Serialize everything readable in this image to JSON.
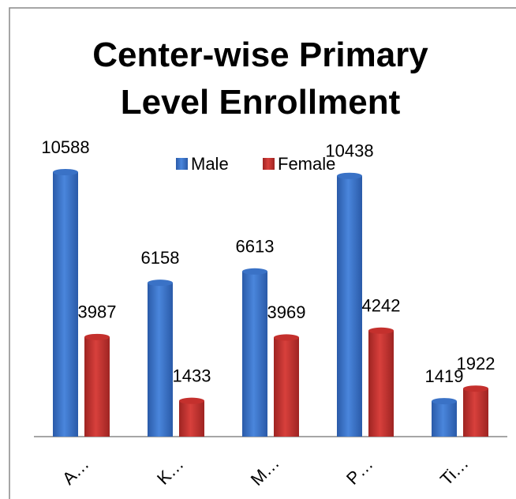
{
  "chart_data": {
    "type": "bar",
    "title": "Center-wise Primary Level Enrollment",
    "categories": [
      "A…",
      "K…",
      "M…",
      "P…",
      "Ti…"
    ],
    "series": [
      {
        "name": "Male",
        "color": "#3a72c6",
        "values": [
          10588,
          6158,
          6613,
          10438,
          1419
        ]
      },
      {
        "name": "Female",
        "color": "#c4302d",
        "values": [
          3987,
          1433,
          3969,
          4242,
          1922
        ]
      }
    ],
    "legend": "top"
  }
}
